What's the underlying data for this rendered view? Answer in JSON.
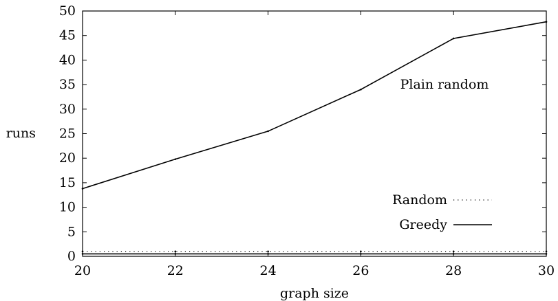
{
  "chart_data": {
    "type": "line",
    "title": "",
    "xlabel": "graph size",
    "ylabel": "runs",
    "annotation": "Plain random",
    "xlim": [
      20,
      30
    ],
    "ylim": [
      0,
      50
    ],
    "xticks": [
      20,
      22,
      24,
      26,
      28,
      30
    ],
    "yticks": [
      0,
      5,
      10,
      15,
      20,
      25,
      30,
      35,
      40,
      45,
      50
    ],
    "grid": false,
    "legend_position": "bottom-right",
    "series": [
      {
        "name": "Random",
        "style": "dotted",
        "color": "#000000",
        "x": [
          20,
          22,
          24,
          26,
          28,
          30
        ],
        "y": [
          1,
          1,
          1,
          1,
          1,
          1
        ]
      },
      {
        "name": "Greedy",
        "style": "solid",
        "color": "#000000",
        "x": [
          20,
          22,
          24,
          26,
          28,
          30
        ],
        "y": [
          0.5,
          0.5,
          0.5,
          0.5,
          0.5,
          0.5
        ]
      },
      {
        "name": "",
        "style": "solid",
        "color": "#000000",
        "x": [
          20,
          22,
          24,
          26,
          28,
          30
        ],
        "y": [
          13.8,
          19.8,
          25.5,
          34,
          44.4,
          47.8
        ]
      }
    ]
  }
}
